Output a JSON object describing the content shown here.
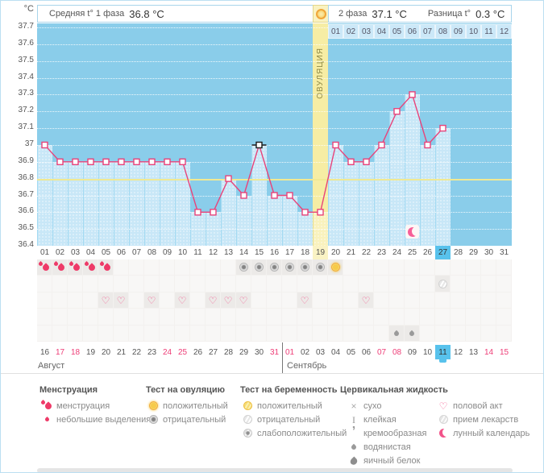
{
  "header": {
    "unit": "°C",
    "avg_phase1_label": "Средняя t° 1 фаза",
    "avg_phase1_value": "36.8 °C",
    "phase2_label": "2 фаза",
    "phase2_value": "37.1 °C",
    "diff_label": "Разница t°",
    "diff_value": "0.3 °C"
  },
  "chart_data": {
    "type": "line",
    "title": "Basal body temperature cycle chart",
    "ylabel": "°C",
    "ylim": [
      36.4,
      37.7
    ],
    "y_ticks": [
      "37.7",
      "37.6",
      "37.5",
      "37.4",
      "37.3",
      "37.2",
      "37.1",
      "37",
      "36.9",
      "36.8",
      "36.7",
      "36.6",
      "36.5",
      "36.4"
    ],
    "categories": [
      "01",
      "02",
      "03",
      "04",
      "05",
      "06",
      "07",
      "08",
      "09",
      "10",
      "11",
      "12",
      "13",
      "14",
      "15",
      "16",
      "17",
      "18",
      "19",
      "20",
      "21",
      "22",
      "23",
      "24",
      "25",
      "26",
      "27",
      "28",
      "29",
      "30",
      "31"
    ],
    "values": [
      37.0,
      36.9,
      36.9,
      36.9,
      36.9,
      36.9,
      36.9,
      36.9,
      36.9,
      36.9,
      36.6,
      36.6,
      36.8,
      36.7,
      37.0,
      36.7,
      36.7,
      36.6,
      36.6,
      37.0,
      36.9,
      36.9,
      37.0,
      37.2,
      37.3,
      37.0,
      37.1,
      null,
      null,
      null,
      null
    ],
    "coverline": 36.8,
    "ovulation_day": 19,
    "ovulation_label": "ОВУЛЯЦИЯ",
    "selected_day": 15,
    "today_day": 27,
    "lunar_marker_day": 25,
    "phase2_day_labels": [
      "01",
      "02",
      "03",
      "04",
      "05",
      "06",
      "07",
      "08",
      "09",
      "10",
      "11",
      "12"
    ],
    "grid": "dotted-horizontal",
    "legend_position": "bottom"
  },
  "icon_grid": {
    "rows": [
      {
        "name": "menstruation-and-ovulation-tests",
        "cells": [
          {
            "day": 1,
            "icon": "menstruation"
          },
          {
            "day": 2,
            "icon": "menstruation"
          },
          {
            "day": 3,
            "icon": "menstruation"
          },
          {
            "day": 4,
            "icon": "menstruation"
          },
          {
            "day": 5,
            "icon": "menstruation"
          },
          {
            "day": 14,
            "icon": "ovulation-test-negative"
          },
          {
            "day": 15,
            "icon": "ovulation-test-negative"
          },
          {
            "day": 16,
            "icon": "ovulation-test-negative"
          },
          {
            "day": 17,
            "icon": "ovulation-test-negative"
          },
          {
            "day": 18,
            "icon": "ovulation-test-negative"
          },
          {
            "day": 19,
            "icon": "ovulation-test-negative"
          },
          {
            "day": 20,
            "icon": "ovulation-test-positive"
          }
        ]
      },
      {
        "name": "pregnancy-tests",
        "cells": [
          {
            "day": 27,
            "icon": "pregnancy-test-negative"
          }
        ]
      },
      {
        "name": "intercourse",
        "cells": [
          {
            "day": 5,
            "icon": "intercourse"
          },
          {
            "day": 6,
            "icon": "intercourse"
          },
          {
            "day": 8,
            "icon": "intercourse"
          },
          {
            "day": 10,
            "icon": "intercourse"
          },
          {
            "day": 12,
            "icon": "intercourse"
          },
          {
            "day": 13,
            "icon": "intercourse"
          },
          {
            "day": 14,
            "icon": "intercourse"
          },
          {
            "day": 18,
            "icon": "intercourse"
          },
          {
            "day": 22,
            "icon": "intercourse"
          }
        ]
      },
      {
        "name": "medication",
        "cells": []
      },
      {
        "name": "cervical-fluid",
        "cells": [
          {
            "day": 24,
            "icon": "watery"
          },
          {
            "day": 25,
            "icon": "watery"
          }
        ]
      }
    ]
  },
  "calendar": {
    "months": [
      {
        "name": "Август",
        "days": [
          {
            "d": "16"
          },
          {
            "d": "17",
            "weekend": true
          },
          {
            "d": "18",
            "weekend": true
          },
          {
            "d": "19"
          },
          {
            "d": "20"
          },
          {
            "d": "21"
          },
          {
            "d": "22"
          },
          {
            "d": "23"
          },
          {
            "d": "24",
            "weekend": true
          },
          {
            "d": "25",
            "weekend": true
          },
          {
            "d": "26"
          },
          {
            "d": "27"
          },
          {
            "d": "28"
          },
          {
            "d": "29"
          },
          {
            "d": "30"
          },
          {
            "d": "31",
            "weekend": true
          }
        ]
      },
      {
        "name": "Сентябрь",
        "days": [
          {
            "d": "01",
            "weekend": true
          },
          {
            "d": "02"
          },
          {
            "d": "03"
          },
          {
            "d": "04"
          },
          {
            "d": "05"
          },
          {
            "d": "06"
          },
          {
            "d": "07",
            "weekend": true
          },
          {
            "d": "08",
            "weekend": true
          },
          {
            "d": "09"
          },
          {
            "d": "10"
          },
          {
            "d": "11",
            "today": true
          },
          {
            "d": "12"
          },
          {
            "d": "13"
          },
          {
            "d": "14",
            "weekend": true
          },
          {
            "d": "15",
            "weekend": true
          }
        ]
      }
    ]
  },
  "legend": {
    "columns": [
      {
        "title": "Менструация",
        "items": [
          {
            "icon": "menstruation",
            "label": "менструация"
          },
          {
            "icon": "spotting",
            "label": "небольшие выделения"
          }
        ]
      },
      {
        "title": "Тест на овуляцию",
        "items": [
          {
            "icon": "ovulation-test-positive",
            "label": "положительный"
          },
          {
            "icon": "ovulation-test-negative",
            "label": "отрицательный"
          }
        ]
      },
      {
        "title": "Тест на беременность",
        "items": [
          {
            "icon": "pregnancy-test-positive",
            "label": "положительный"
          },
          {
            "icon": "pregnancy-test-negative",
            "label": "отрицательный"
          },
          {
            "icon": "pregnancy-test-weak",
            "label": "слабоположительный"
          }
        ]
      },
      {
        "title": "Цервикальная жидкость",
        "items": [
          {
            "icon": "dry",
            "label": "сухо"
          },
          {
            "icon": "sticky",
            "label": "клейкая"
          },
          {
            "icon": "creamy",
            "label": "кремообразная"
          },
          {
            "icon": "watery",
            "label": "водянистая"
          },
          {
            "icon": "eggwhite",
            "label": "яичный белок"
          }
        ]
      },
      {
        "title": "",
        "items": [
          {
            "icon": "intercourse",
            "label": "половой акт"
          },
          {
            "icon": "medication",
            "label": "прием лекарств"
          },
          {
            "icon": "lunar",
            "label": "лунный календарь"
          }
        ]
      }
    ]
  },
  "colors": {
    "plot_bg": "#8acdea",
    "fill": "#c8e7f7",
    "line": "#e8437a",
    "ovulation_band": "#f6eda4",
    "coverline": "#f0e993",
    "today_highlight": "#58c2ec",
    "weekend_text": "#ee3d77"
  }
}
